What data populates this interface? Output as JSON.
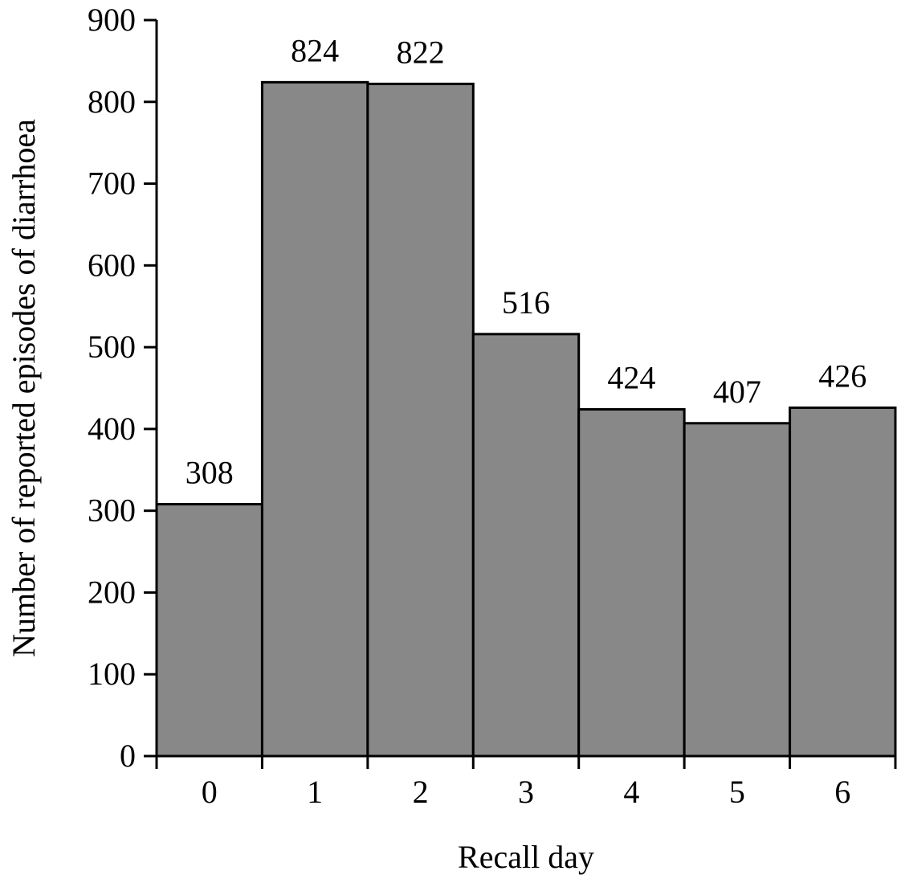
{
  "chart_data": {
    "type": "bar",
    "title": "",
    "xlabel": "Recall day",
    "ylabel": "Number of reported episodes of diarrhoea",
    "categories": [
      "0",
      "1",
      "2",
      "3",
      "4",
      "5",
      "6"
    ],
    "values": [
      308,
      824,
      822,
      516,
      424,
      407,
      426
    ],
    "data_labels": [
      "308",
      "824",
      "822",
      "516",
      "424",
      "407",
      "426"
    ],
    "ylim": [
      0,
      900
    ],
    "yticks": [
      0,
      100,
      200,
      300,
      400,
      500,
      600,
      700,
      800,
      900
    ],
    "ytick_labels": [
      "0",
      "100",
      "200",
      "300",
      "400",
      "500",
      "600",
      "700",
      "800",
      "900"
    ],
    "grid": false,
    "legend": "none",
    "colors": {
      "bar_fill": "#888888",
      "bar_stroke": "#000000",
      "axis": "#000000",
      "text": "#000000"
    }
  }
}
